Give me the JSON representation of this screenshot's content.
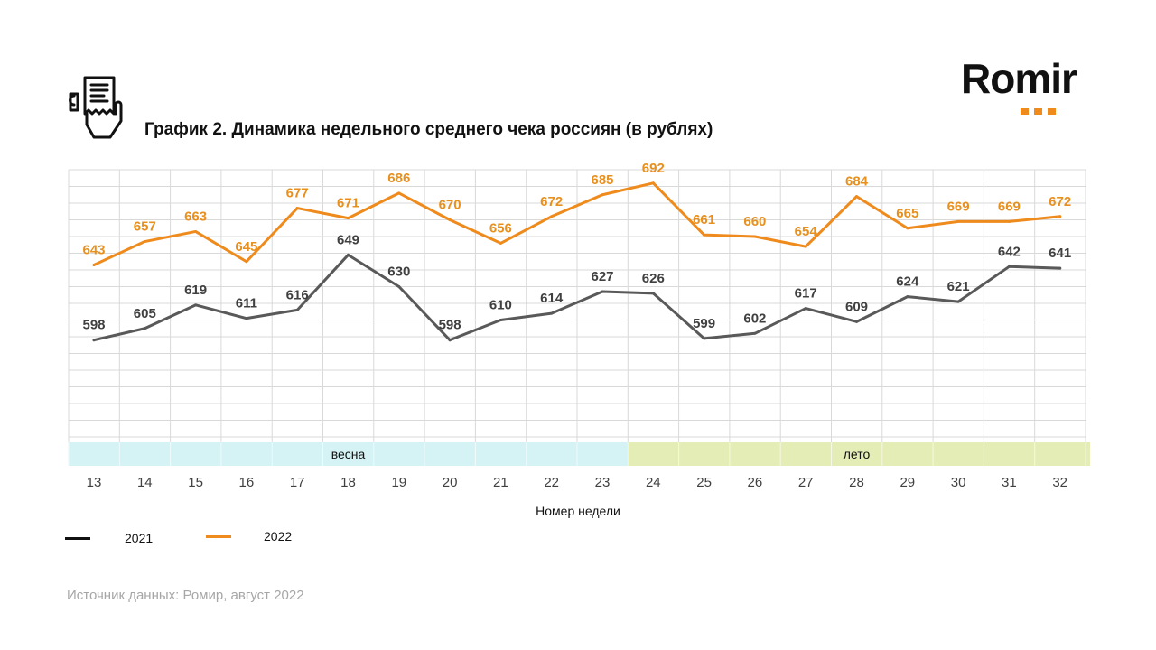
{
  "header": {
    "title": "График 2. Динамика недельного среднего чека россиян (в рублях)",
    "logo_text": "Romir"
  },
  "icons": {
    "receipt": "receipt-hand-icon",
    "logo_dots": "logo-dots-icon"
  },
  "colors": {
    "series_2021": "#595959",
    "series_2022": "#ef8a1c",
    "label_2022": "#e8901e",
    "spring_band": "#d5f3f5",
    "summer_band": "#e5edb7",
    "grid": "#d9d9d9",
    "source_text": "#a6a6a6"
  },
  "chart_data": {
    "type": "line",
    "title": "График 2. Динамика недельного среднего чека россиян (в рублях)",
    "xlabel": "Номер недели",
    "ylabel": "",
    "categories": [
      "13",
      "14",
      "15",
      "16",
      "17",
      "18",
      "19",
      "20",
      "21",
      "22",
      "23",
      "24",
      "25",
      "26",
      "27",
      "28",
      "29",
      "30",
      "31",
      "32"
    ],
    "series": [
      {
        "name": "2021",
        "values": [
          598,
          605,
          619,
          611,
          616,
          649,
          630,
          598,
          610,
          614,
          627,
          626,
          599,
          602,
          617,
          609,
          624,
          621,
          642,
          641
        ]
      },
      {
        "name": "2022",
        "values": [
          643,
          657,
          663,
          645,
          677,
          671,
          686,
          670,
          656,
          672,
          685,
          692,
          661,
          660,
          654,
          684,
          665,
          669,
          669,
          672
        ]
      }
    ],
    "ylim": [
      540,
      700
    ],
    "grid": true,
    "legend_position": "bottom-left",
    "season_bands": [
      {
        "label": "весна",
        "from": "13",
        "to": "23"
      },
      {
        "label": "лето",
        "from": "24",
        "to": "32"
      }
    ]
  },
  "legend": {
    "items": [
      {
        "label": "2021",
        "color": "#111111"
      },
      {
        "label": "2022",
        "color": "#ef8a1c"
      }
    ]
  },
  "footer": {
    "source": "Источник данных: Ромир, август 2022"
  }
}
